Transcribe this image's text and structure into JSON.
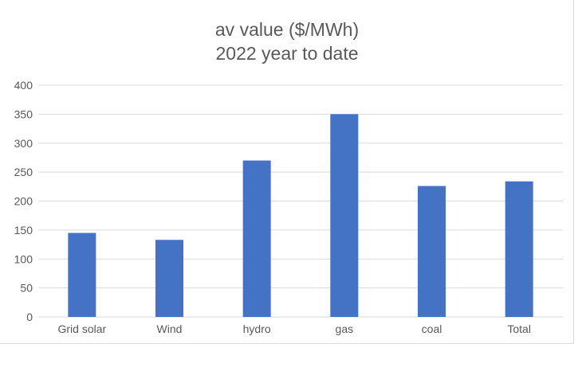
{
  "chart_data": {
    "type": "bar",
    "title": "av value ($/MWh)",
    "subtitle": "2022 year to date",
    "xlabel": "",
    "ylabel": "",
    "categories": [
      "Grid solar",
      "Wind",
      "hydro",
      "gas",
      "coal",
      "Total"
    ],
    "values": [
      145,
      133,
      270,
      350,
      226,
      234
    ],
    "ylim": [
      0,
      400
    ],
    "yticks": [
      "0",
      "50",
      "100",
      "150",
      "200",
      "250",
      "300",
      "350",
      "400"
    ],
    "grid": true,
    "legend": "none",
    "bar_color": "#4472c4",
    "grid_color": "#d9d9d9"
  }
}
